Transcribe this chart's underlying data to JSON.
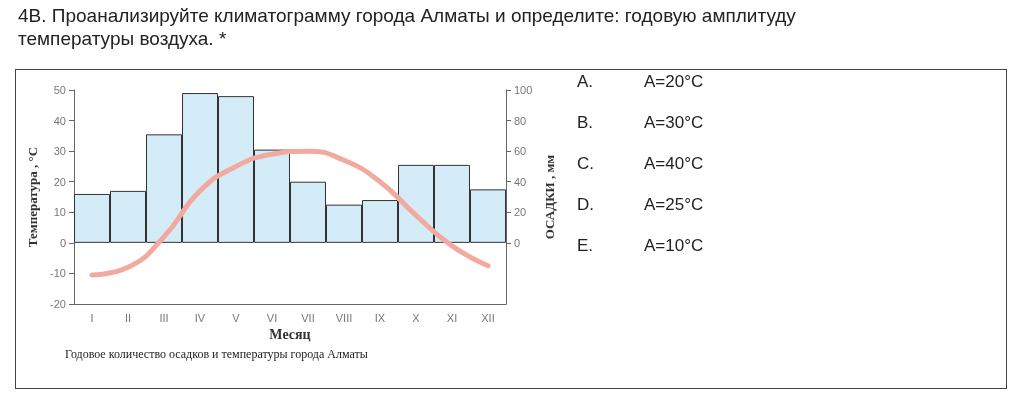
{
  "chart_data": {
    "type": "bar",
    "title": "4В. Проанализируйте климатограмму города Алматы и определите: годовую амплитуду температуры воздуха. *",
    "xlabel": "Месяц",
    "ylabel": "Температура , °C",
    "y2label": "ОСАДКИ , мм",
    "categories": [
      "I",
      "II",
      "III",
      "IV",
      "V",
      "VI",
      "VII",
      "VIII",
      "IX",
      "X",
      "XI",
      "XII"
    ],
    "series": [
      {
        "axis": "y2",
        "color": "#d4ecf8",
        "values": [
          32,
          34,
          71,
          98,
          96,
          61,
          40,
          25,
          28,
          51,
          51,
          35
        ]
      },
      {
        "type": "line",
        "color": "#f2aaa0",
        "values": [
          -10.5,
          -8,
          2,
          17,
          25,
          29,
          30,
          27,
          20,
          9,
          -1,
          -7.5
        ]
      }
    ],
    "ylim": [
      -20,
      50
    ],
    "yticks": [
      -20,
      -10,
      0,
      10,
      20,
      30,
      40,
      50
    ],
    "y2lim": [
      -40,
      100
    ],
    "y2ticks": [
      0,
      20,
      40,
      60,
      80,
      100
    ],
    "grid": false,
    "marker": "none",
    "line_style": "solid",
    "annotations": [
      "Годовое количество осадков и температуры города Алматы",
      "A.",
      "A=20°C",
      "B.",
      "A=30°C",
      "C.",
      "A=40°C",
      "D.",
      "A=25°C",
      "E.",
      "A=10°C"
    ]
  }
}
